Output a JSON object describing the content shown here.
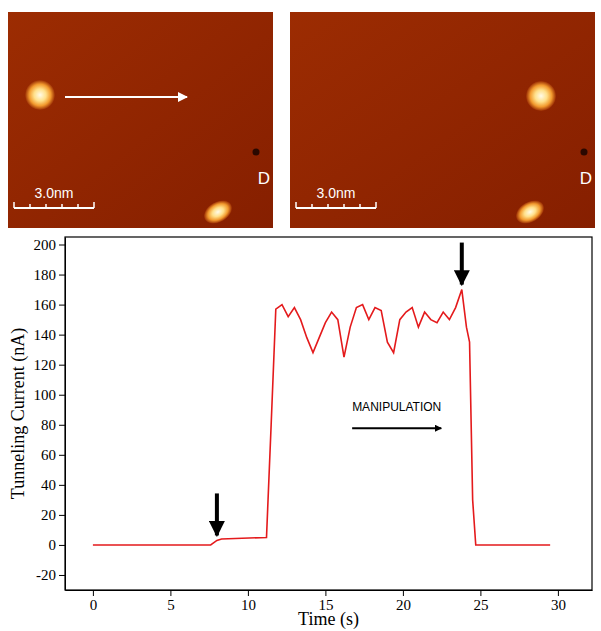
{
  "chart_data": {
    "type": "line",
    "x_label": "Time (s)",
    "y_label": "Tunneling Current (nA)",
    "x": [
      0,
      7.6,
      8.0,
      8.3,
      11.2,
      11.5,
      11.8,
      12.2,
      12.6,
      13.0,
      13.4,
      13.8,
      14.2,
      14.6,
      15.0,
      15.4,
      15.8,
      16.2,
      16.6,
      17.0,
      17.4,
      17.8,
      18.2,
      18.6,
      19.0,
      19.4,
      19.8,
      20.2,
      20.6,
      21.0,
      21.4,
      21.8,
      22.2,
      22.6,
      23.0,
      23.4,
      23.8,
      24.1,
      24.3,
      24.5,
      24.7,
      29.5
    ],
    "values": [
      0,
      0,
      3,
      4,
      5,
      80,
      157,
      160,
      152,
      158,
      150,
      138,
      128,
      138,
      148,
      155,
      150,
      125,
      145,
      158,
      160,
      150,
      158,
      156,
      135,
      128,
      150,
      155,
      158,
      145,
      155,
      150,
      148,
      155,
      150,
      158,
      170,
      145,
      135,
      30,
      0,
      0
    ],
    "color": "#e41a1c",
    "xlim": [
      -1.8,
      32.2
    ],
    "xticks": [
      0,
      5,
      10,
      15,
      20,
      25,
      30
    ],
    "ylim": [
      -30,
      205
    ],
    "yticks": [
      -20,
      0,
      20,
      40,
      60,
      80,
      100,
      120,
      140,
      160,
      180,
      200
    ],
    "annotations": [
      {
        "text": "MANIPULATION",
        "x": 19.6,
        "y": 89
      }
    ]
  },
  "images": [
    {
      "scale_bar": "3.0nm",
      "label": "D"
    },
    {
      "scale_bar": "3.0nm",
      "label": "D"
    }
  ]
}
